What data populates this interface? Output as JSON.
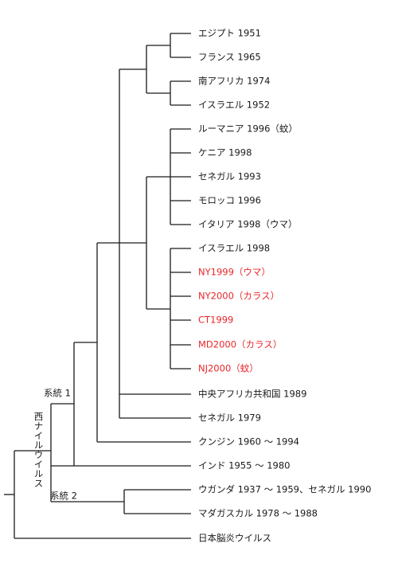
{
  "tree": {
    "leaves": [
      {
        "label": "エジプト 1951",
        "highlight": false
      },
      {
        "label": "フランス 1965",
        "highlight": false
      },
      {
        "label": "南アフリカ 1974",
        "highlight": false
      },
      {
        "label": "イスラエル 1952",
        "highlight": false
      },
      {
        "label": "ルーマニア 1996（蚊）",
        "highlight": false
      },
      {
        "label": "ケニア 1998",
        "highlight": false
      },
      {
        "label": "セネガル 1993",
        "highlight": false
      },
      {
        "label": "モロッコ 1996",
        "highlight": false
      },
      {
        "label": "イタリア 1998（ウマ）",
        "highlight": false
      },
      {
        "label": "イスラエル 1998",
        "highlight": false
      },
      {
        "label": "NY1999（ウマ）",
        "highlight": true
      },
      {
        "label": "NY2000（カラス）",
        "highlight": true
      },
      {
        "label": "CT1999",
        "highlight": true
      },
      {
        "label": "MD2000（カラス）",
        "highlight": true
      },
      {
        "label": "NJ2000（蚊）",
        "highlight": true
      },
      {
        "label": "中央アフリカ共和国 1989",
        "highlight": false
      },
      {
        "label": "セネガル 1979",
        "highlight": false
      },
      {
        "label": "クンジン 1960 ～ 1994",
        "highlight": false
      },
      {
        "label": "インド 1955 ～ 1980",
        "highlight": false
      },
      {
        "label": "ウガンダ 1937 ～ 1959、セネガル 1990",
        "highlight": false
      },
      {
        "label": "マダガスカル 1978 ～ 1988",
        "highlight": false
      },
      {
        "label": "日本脳炎ウイルス",
        "highlight": false
      }
    ],
    "clade_labels": {
      "lineage1": "系統 1",
      "lineage2": "系統 2",
      "west_nile_virus": "西ナイルウイルス"
    }
  },
  "colors": {
    "line": "#1a1a1a",
    "text": "#1a1a1a",
    "highlight": "#e8262a"
  }
}
